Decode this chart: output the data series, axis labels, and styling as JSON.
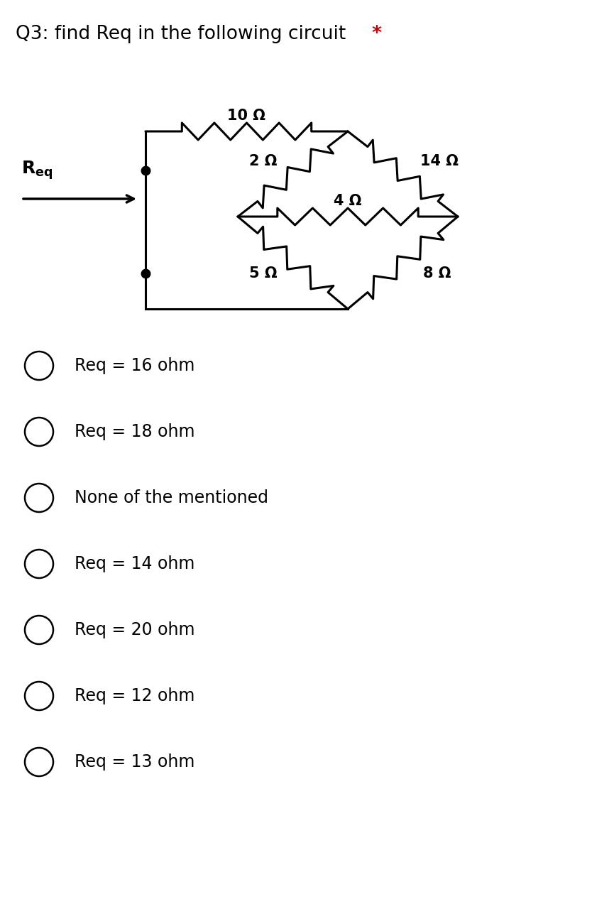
{
  "title": "Q3: find Req in the following circuit",
  "title_star": " *",
  "background_color": "#ffffff",
  "text_color": "#000000",
  "star_color": "#cc0000",
  "options": [
    "Req = 16 ohm",
    "Req = 18 ohm",
    "None of the mentioned",
    "Req = 14 ohm",
    "Req = 20 ohm",
    "Req = 12 ohm",
    "Req = 13 ohm"
  ],
  "circuit": {
    "lw": 2.2,
    "color": "#000000"
  }
}
